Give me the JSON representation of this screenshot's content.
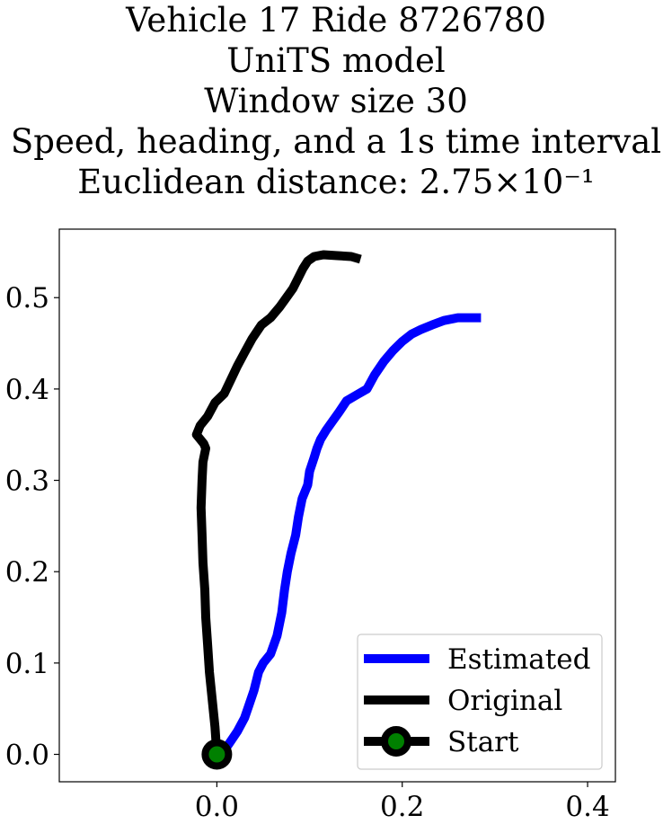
{
  "chart_data": {
    "type": "line",
    "title_lines": [
      "Vehicle 17 Ride 8726780",
      "UniTS model",
      "Window size 30",
      "Speed, heading, and a 1s time interval",
      "Euclidean distance: 2.75×10⁻¹"
    ],
    "xlabel": "",
    "ylabel": "",
    "xlim": [
      -0.17,
      0.43
    ],
    "ylim": [
      -0.03,
      0.575
    ],
    "xticks": [
      0.0,
      0.2,
      0.4
    ],
    "xtick_labels": [
      "0.0",
      "0.2",
      "0.4"
    ],
    "yticks": [
      0.0,
      0.1,
      0.2,
      0.3,
      0.4,
      0.5
    ],
    "ytick_labels": [
      "0.0",
      "0.1",
      "0.2",
      "0.3",
      "0.4",
      "0.5"
    ],
    "grid": false,
    "legend_position": "bottom-right",
    "series": [
      {
        "name": "Estimated",
        "color": "#0000ff",
        "x": [
          0.0,
          0.012,
          0.022,
          0.03,
          0.035,
          0.04,
          0.045,
          0.05,
          0.058,
          0.065,
          0.07,
          0.073,
          0.076,
          0.08,
          0.085,
          0.088,
          0.092,
          0.098,
          0.1,
          0.105,
          0.108,
          0.112,
          0.118,
          0.125,
          0.132,
          0.14,
          0.15,
          0.162,
          0.17,
          0.18,
          0.19,
          0.2,
          0.21,
          0.22,
          0.232,
          0.245,
          0.26,
          0.27,
          0.285
        ],
        "y": [
          0.0,
          0.01,
          0.025,
          0.04,
          0.055,
          0.07,
          0.09,
          0.1,
          0.11,
          0.13,
          0.155,
          0.18,
          0.2,
          0.22,
          0.24,
          0.26,
          0.28,
          0.295,
          0.31,
          0.325,
          0.335,
          0.345,
          0.355,
          0.365,
          0.375,
          0.387,
          0.393,
          0.4,
          0.415,
          0.43,
          0.442,
          0.452,
          0.46,
          0.465,
          0.47,
          0.475,
          0.478,
          0.478,
          0.478
        ]
      },
      {
        "name": "Original",
        "color": "#000000",
        "x": [
          0.0,
          -0.002,
          -0.005,
          -0.008,
          -0.01,
          -0.012,
          -0.013,
          -0.015,
          -0.016,
          -0.017,
          -0.016,
          -0.015,
          -0.012,
          -0.014,
          -0.018,
          -0.022,
          -0.018,
          -0.01,
          -0.002,
          0.008,
          0.015,
          0.022,
          0.03,
          0.038,
          0.048,
          0.058,
          0.068,
          0.075,
          0.082,
          0.088,
          0.093,
          0.098,
          0.105,
          0.115,
          0.13,
          0.145,
          0.155
        ],
        "y": [
          0.0,
          0.03,
          0.06,
          0.09,
          0.12,
          0.15,
          0.18,
          0.21,
          0.24,
          0.27,
          0.3,
          0.32,
          0.335,
          0.34,
          0.345,
          0.35,
          0.36,
          0.37,
          0.385,
          0.395,
          0.41,
          0.425,
          0.44,
          0.455,
          0.47,
          0.478,
          0.49,
          0.5,
          0.51,
          0.522,
          0.532,
          0.54,
          0.545,
          0.547,
          0.546,
          0.545,
          0.542
        ]
      },
      {
        "name": "Start",
        "color": "#000000",
        "marker_color": "#008000",
        "x": [
          0.0
        ],
        "y": [
          0.0
        ]
      }
    ]
  }
}
